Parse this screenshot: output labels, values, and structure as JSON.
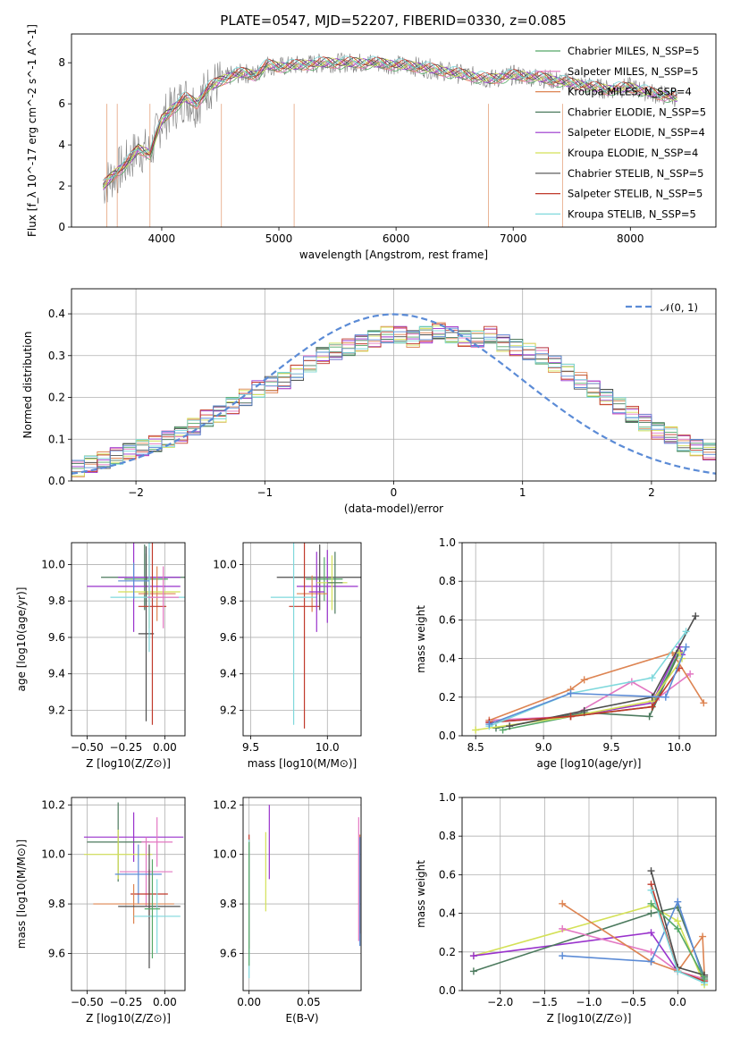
{
  "chart_data": [
    {
      "type": "line",
      "title": "PLATE=0547, MJD=52207, FIBERID=0330, z=0.085",
      "xlabel": "wavelength [Angstrom, rest frame]",
      "ylabel": "Flux [f_λ 10^-17 erg cm^-2 s^-1 A^-1]",
      "xlim": [
        3230,
        8730
      ],
      "ylim": [
        0,
        9.4
      ],
      "xticks": [
        "4000",
        "5000",
        "6000",
        "7000",
        "8000"
      ],
      "yticks": [
        "0",
        "2",
        "4",
        "6",
        "8"
      ],
      "legend_position": "upper-right",
      "data_color": "#808080",
      "data_spectrum": {
        "x": [
          3500,
          3600,
          3700,
          3800,
          3900,
          4000,
          4100,
          4200,
          4300,
          4400,
          4500,
          4600,
          4700,
          4800,
          4900,
          5000,
          5200,
          5400,
          5600,
          5800,
          6000,
          6200,
          6400,
          6600,
          6800,
          7000,
          7200,
          7400,
          7600,
          7800,
          8000,
          8200,
          8400
        ],
        "y": [
          2.0,
          2.6,
          3.1,
          3.8,
          3.6,
          5.2,
          5.8,
          6.3,
          6.0,
          6.8,
          7.1,
          7.4,
          7.5,
          7.4,
          7.9,
          7.8,
          7.9,
          8.0,
          8.0,
          8.0,
          7.9,
          7.8,
          7.6,
          7.4,
          7.2,
          7.4,
          7.3,
          7.1,
          6.9,
          6.7,
          6.8,
          6.5,
          6.3
        ]
      },
      "series": [
        {
          "name": "Chabrier MILES, N_SSP=5",
          "color": "#55a868"
        },
        {
          "name": "Salpeter MILES, N_SSP=5",
          "color": "#e377c2"
        },
        {
          "name": "Kroupa MILES, N_SSP=4",
          "color": "#dd8452"
        },
        {
          "name": "Chabrier ELODIE, N_SSP=5",
          "color": "#4c7a5e"
        },
        {
          "name": "Salpeter ELODIE, N_SSP=4",
          "color": "#9932cc"
        },
        {
          "name": "Kroupa ELODIE, N_SSP=4",
          "color": "#d4e157"
        },
        {
          "name": "Chabrier STELIB, N_SSP=5",
          "color": "#4d4d4d"
        },
        {
          "name": "Salpeter STELIB, N_SSP=5",
          "color": "#c0392b"
        },
        {
          "name": "Kroupa STELIB, N_SSP=5",
          "color": "#7fd8dc"
        }
      ]
    },
    {
      "type": "area",
      "xlabel": "(data-model)/error",
      "ylabel": "Normed distribution",
      "xlim": [
        -2.5,
        2.5
      ],
      "ylim": [
        0,
        0.46
      ],
      "xticks": [
        "−2",
        "−1",
        "0",
        "1",
        "2"
      ],
      "yticks": [
        "0.0",
        "0.1",
        "0.2",
        "0.3",
        "0.4"
      ],
      "grid": true,
      "bin_edges_start": -2.5,
      "bin_width": 0.1,
      "hist_values": [
        0.03,
        0.04,
        0.05,
        0.06,
        0.07,
        0.08,
        0.09,
        0.1,
        0.11,
        0.13,
        0.15,
        0.16,
        0.18,
        0.2,
        0.22,
        0.23,
        0.24,
        0.26,
        0.28,
        0.3,
        0.31,
        0.32,
        0.33,
        0.34,
        0.35,
        0.35,
        0.34,
        0.35,
        0.36,
        0.35,
        0.34,
        0.34,
        0.35,
        0.33,
        0.32,
        0.31,
        0.3,
        0.28,
        0.26,
        0.24,
        0.22,
        0.2,
        0.18,
        0.16,
        0.14,
        0.12,
        0.11,
        0.09,
        0.08,
        0.07
      ],
      "normal_legend": "𝒩(0, 1)",
      "normal_color": "#5b8bd6"
    },
    {
      "type": "scatter",
      "xlabel": "Z [log10(Z/Z⊙)]",
      "ylabel": "age [log10(age/yr)]",
      "xlim": [
        -0.6,
        0.13
      ],
      "ylim": [
        9.06,
        10.12
      ],
      "xticks": [
        "−0.50",
        "−0.25",
        "0.00"
      ],
      "yticks": [
        "9.2",
        "9.4",
        "9.6",
        "9.8",
        "10.0"
      ],
      "points": [
        {
          "x": -0.13,
          "y": 9.93,
          "xerr": 0.28,
          "yerr": 0.18,
          "color": "#4c7a5e"
        },
        {
          "x": -0.1,
          "y": 9.93,
          "xerr": 0.2,
          "yerr": 0.16,
          "color": "#9932cc"
        },
        {
          "x": -0.12,
          "y": 9.92,
          "xerr": 0.14,
          "yerr": 0.14,
          "color": "#55a868"
        },
        {
          "x": -0.05,
          "y": 9.84,
          "xerr": 0.12,
          "yerr": 0.15,
          "color": "#dd8452"
        },
        {
          "x": -0.2,
          "y": 9.88,
          "xerr": 0.3,
          "yerr": 0.25,
          "color": "#9932cc"
        },
        {
          "x": -0.1,
          "y": 9.85,
          "xerr": 0.2,
          "yerr": 0.2,
          "color": "#d4e157"
        },
        {
          "x": -0.12,
          "y": 9.62,
          "xerr": 0.05,
          "yerr": 0.48,
          "color": "#4d4d4d"
        },
        {
          "x": -0.08,
          "y": 9.77,
          "xerr": 0.09,
          "yerr": 0.65,
          "color": "#c0392b"
        },
        {
          "x": -0.1,
          "y": 9.82,
          "xerr": 0.25,
          "yerr": 0.3,
          "color": "#7fd8dc"
        },
        {
          "x": -0.2,
          "y": 9.91,
          "xerr": 0.1,
          "yerr": 0.1,
          "color": "#5b8bd6"
        },
        {
          "x": -0.01,
          "y": 9.82,
          "xerr": 0.1,
          "yerr": 0.17,
          "color": "#e377c2"
        }
      ]
    },
    {
      "type": "scatter",
      "xlabel": "mass [log10(M/M⊙)]",
      "xlim": [
        9.45,
        10.22
      ],
      "ylim": [
        9.06,
        10.12
      ],
      "xticks": [
        "9.5",
        "10.0"
      ],
      "yticks": [
        "9.2",
        "9.4",
        "9.6",
        "9.8",
        "10.0"
      ],
      "points": [
        {
          "x": 9.95,
          "y": 9.93,
          "xerr": 0.28,
          "yerr": 0.18,
          "color": "#4d4d4d"
        },
        {
          "x": 10.0,
          "y": 9.88,
          "xerr": 0.2,
          "yerr": 0.2,
          "color": "#9932cc"
        },
        {
          "x": 9.98,
          "y": 9.92,
          "xerr": 0.12,
          "yerr": 0.12,
          "color": "#55a868"
        },
        {
          "x": 9.9,
          "y": 9.84,
          "xerr": 0.1,
          "yerr": 0.1,
          "color": "#dd8452"
        },
        {
          "x": 9.85,
          "y": 9.77,
          "xerr": 0.1,
          "yerr": 0.67,
          "color": "#c0392b"
        },
        {
          "x": 9.78,
          "y": 9.82,
          "xerr": 0.15,
          "yerr": 0.7,
          "color": "#7fd8dc"
        },
        {
          "x": 9.93,
          "y": 9.85,
          "xerr": 0.05,
          "yerr": 0.22,
          "color": "#9932cc"
        },
        {
          "x": 10.03,
          "y": 9.9,
          "xerr": 0.1,
          "yerr": 0.15,
          "color": "#d4e157"
        },
        {
          "x": 10.05,
          "y": 9.9,
          "xerr": 0.05,
          "yerr": 0.17,
          "color": "#4c7a5e"
        }
      ]
    },
    {
      "type": "line",
      "xlabel": "age [log10(age/yr)]",
      "ylabel": "mass weight",
      "xlim": [
        8.4,
        10.27
      ],
      "ylim": [
        0,
        1
      ],
      "xticks": [
        "8.5",
        "9.0",
        "9.5",
        "10.0"
      ],
      "yticks": [
        "0.0",
        "0.2",
        "0.4",
        "0.6",
        "0.8",
        "1.0"
      ],
      "series": [
        {
          "color": "#55a868",
          "x": [
            8.7,
            9.2,
            9.8,
            10.0
          ],
          "y": [
            0.03,
            0.1,
            0.15,
            0.44
          ]
        },
        {
          "color": "#e377c2",
          "x": [
            8.6,
            9.2,
            9.65,
            9.85,
            10.08
          ],
          "y": [
            0.08,
            0.1,
            0.28,
            0.2,
            0.32
          ]
        },
        {
          "color": "#dd8452",
          "x": [
            8.6,
            9.2,
            9.3,
            9.95,
            10.18
          ],
          "y": [
            0.08,
            0.24,
            0.29,
            0.43,
            0.17
          ]
        },
        {
          "color": "#4c7a5e",
          "x": [
            8.65,
            9.3,
            9.78,
            10.0
          ],
          "y": [
            0.04,
            0.12,
            0.1,
            0.43
          ]
        },
        {
          "color": "#9932cc",
          "x": [
            8.6,
            9.2,
            9.8,
            10.0,
            10.02
          ],
          "y": [
            0.07,
            0.1,
            0.17,
            0.46,
            0.42
          ]
        },
        {
          "color": "#d4e157",
          "x": [
            8.5,
            9.2,
            9.8,
            10.02,
            10.0
          ],
          "y": [
            0.03,
            0.1,
            0.18,
            0.4,
            0.43
          ]
        },
        {
          "color": "#4d4d4d",
          "x": [
            8.75,
            9.3,
            9.8,
            10.12
          ],
          "y": [
            0.05,
            0.13,
            0.2,
            0.62
          ]
        },
        {
          "color": "#c0392b",
          "x": [
            8.6,
            9.2,
            9.8,
            10.0
          ],
          "y": [
            0.07,
            0.1,
            0.15,
            0.35
          ]
        },
        {
          "color": "#7fd8dc",
          "x": [
            8.6,
            9.2,
            9.8,
            10.05
          ],
          "y": [
            0.05,
            0.22,
            0.3,
            0.54
          ]
        },
        {
          "color": "#5b8bd6",
          "x": [
            8.6,
            9.2,
            9.9,
            10.05
          ],
          "y": [
            0.06,
            0.22,
            0.2,
            0.46
          ]
        }
      ]
    },
    {
      "type": "scatter",
      "xlabel": "Z [log10(Z/Z⊙)]",
      "ylabel": "mass [log10(M/M⊙)]",
      "xlim": [
        -0.6,
        0.13
      ],
      "ylim": [
        9.45,
        10.23
      ],
      "xticks": [
        "−0.50",
        "−0.25",
        "0.00"
      ],
      "yticks": [
        "9.6",
        "9.8",
        "10.0",
        "10.2"
      ],
      "points": [
        {
          "x": -0.2,
          "y": 10.07,
          "xerr": 0.32,
          "yerr": 0.1,
          "color": "#9932cc"
        },
        {
          "x": -0.3,
          "y": 10.05,
          "xerr": 0.2,
          "yerr": 0.16,
          "color": "#4c7a5e"
        },
        {
          "x": -0.05,
          "y": 10.05,
          "xerr": 0.1,
          "yerr": 0.1,
          "color": "#e377c2"
        },
        {
          "x": -0.3,
          "y": 10.0,
          "xerr": 0.22,
          "yerr": 0.1,
          "color": "#d4e157"
        },
        {
          "x": -0.12,
          "y": 9.93,
          "xerr": 0.17,
          "yerr": 0.14,
          "color": "#e377c2"
        },
        {
          "x": -0.17,
          "y": 9.92,
          "xerr": 0.15,
          "yerr": 0.12,
          "color": "#5b8bd6"
        },
        {
          "x": -0.1,
          "y": 9.84,
          "xerr": 0.12,
          "yerr": 0.1,
          "color": "#c0392b"
        },
        {
          "x": -0.2,
          "y": 9.8,
          "xerr": 0.26,
          "yerr": 0.08,
          "color": "#dd8452"
        },
        {
          "x": -0.1,
          "y": 9.79,
          "xerr": 0.2,
          "yerr": 0.25,
          "color": "#4d4d4d"
        },
        {
          "x": -0.05,
          "y": 9.75,
          "xerr": 0.15,
          "yerr": 0.15,
          "color": "#7fd8dc"
        },
        {
          "x": -0.08,
          "y": 9.78,
          "xerr": 0.05,
          "yerr": 0.2,
          "color": "#55a868"
        }
      ]
    },
    {
      "type": "scatter",
      "xlabel": "E(B-V)",
      "xlim": [
        -0.005,
        0.094
      ],
      "ylim": [
        9.45,
        10.23
      ],
      "xticks": [
        "0.00",
        "0.05"
      ],
      "yticks": [
        "9.6",
        "9.8",
        "10.0",
        "10.2"
      ],
      "points": [
        {
          "x": 0.0,
          "y": 9.85,
          "yerr": 0.23,
          "color": "#c0392b"
        },
        {
          "x": 0.0,
          "y": 9.78,
          "yerr": 0.28,
          "color": "#7fd8dc"
        },
        {
          "x": 0.0,
          "y": 9.8,
          "yerr": 0.25,
          "color": "#55a868"
        },
        {
          "x": 0.014,
          "y": 9.93,
          "yerr": 0.16,
          "color": "#d4e157"
        },
        {
          "x": 0.017,
          "y": 10.05,
          "yerr": 0.15,
          "color": "#9932cc"
        },
        {
          "x": 0.092,
          "y": 9.9,
          "yerr": 0.25,
          "color": "#e377c2"
        },
        {
          "x": 0.093,
          "y": 9.88,
          "yerr": 0.2,
          "color": "#dd8452"
        },
        {
          "x": 0.093,
          "y": 9.85,
          "yerr": 0.22,
          "color": "#5b8bd6"
        }
      ]
    },
    {
      "type": "line",
      "xlabel": "Z [log10(Z/Z⊙)]",
      "ylabel": "mass weight",
      "xlim": [
        -2.43,
        0.43
      ],
      "ylim": [
        0,
        1
      ],
      "xticks": [
        "−2.0",
        "−1.5",
        "−1.0",
        "−0.5",
        "0.0"
      ],
      "yticks": [
        "0.0",
        "0.2",
        "0.4",
        "0.6",
        "0.8",
        "1.0"
      ],
      "series": [
        {
          "color": "#d4e157",
          "x": [
            -2.3,
            -0.3,
            0.0,
            0.3
          ],
          "y": [
            0.18,
            0.44,
            0.36,
            0.03
          ]
        },
        {
          "color": "#9932cc",
          "x": [
            -2.3,
            -0.3,
            0.0,
            0.3
          ],
          "y": [
            0.18,
            0.3,
            0.1,
            0.05
          ]
        },
        {
          "color": "#4c7a5e",
          "x": [
            -2.3,
            -0.3,
            0.0,
            0.3
          ],
          "y": [
            0.1,
            0.4,
            0.43,
            0.07
          ]
        },
        {
          "color": "#e377c2",
          "x": [
            -1.3,
            -0.3,
            0.0,
            0.3
          ],
          "y": [
            0.32,
            0.2,
            0.1,
            0.06
          ]
        },
        {
          "color": "#dd8452",
          "x": [
            -1.3,
            -0.3,
            0.0,
            0.28,
            0.3
          ],
          "y": [
            0.45,
            0.15,
            0.1,
            0.28,
            0.08
          ]
        },
        {
          "color": "#5b8bd6",
          "x": [
            -1.3,
            -0.3,
            0.0,
            0.3
          ],
          "y": [
            0.18,
            0.15,
            0.46,
            0.05
          ]
        },
        {
          "color": "#4d4d4d",
          "x": [
            -0.3,
            0.0,
            0.3
          ],
          "y": [
            0.62,
            0.12,
            0.08
          ]
        },
        {
          "color": "#c0392b",
          "x": [
            -0.3,
            0.0,
            0.3
          ],
          "y": [
            0.55,
            0.1,
            0.05
          ]
        },
        {
          "color": "#7fd8dc",
          "x": [
            -0.3,
            0.0,
            0.3
          ],
          "y": [
            0.52,
            0.1,
            0.04
          ]
        },
        {
          "color": "#55a868",
          "x": [
            -0.3,
            0.0,
            0.3
          ],
          "y": [
            0.45,
            0.32,
            0.06
          ]
        }
      ]
    }
  ]
}
